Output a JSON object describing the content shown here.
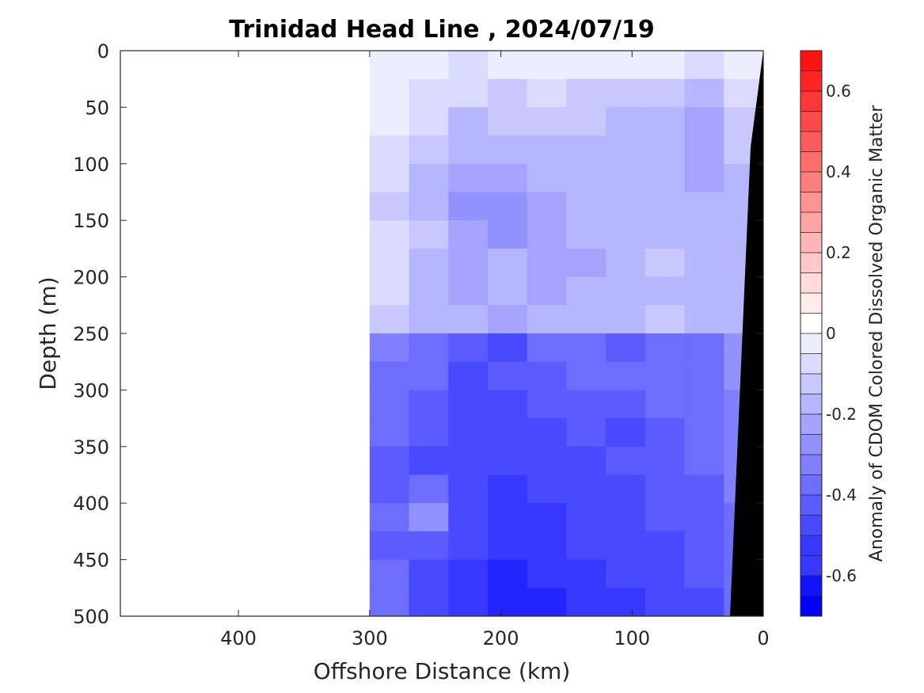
{
  "chart_data": {
    "type": "heatmap",
    "title": "Trinidad Head Line , 2024/07/19",
    "xlabel": "Offshore Distance (km)",
    "ylabel": "Depth (m)",
    "xlim": [
      490,
      0
    ],
    "ylim": [
      0,
      500
    ],
    "x_reversed": true,
    "y_reversed": true,
    "x_ticks": [
      {
        "value": 400,
        "label": "400"
      },
      {
        "value": 300,
        "label": "300"
      },
      {
        "value": 200,
        "label": "200"
      },
      {
        "value": 100,
        "label": "100"
      },
      {
        "value": 0,
        "label": "0"
      }
    ],
    "y_ticks": [
      {
        "value": 0,
        "label": "0"
      },
      {
        "value": 50,
        "label": "50"
      },
      {
        "value": 100,
        "label": "100"
      },
      {
        "value": 150,
        "label": "150"
      },
      {
        "value": 200,
        "label": "200"
      },
      {
        "value": 250,
        "label": "250"
      },
      {
        "value": 300,
        "label": "300"
      },
      {
        "value": 350,
        "label": "350"
      },
      {
        "value": 400,
        "label": "400"
      },
      {
        "value": 450,
        "label": "450"
      },
      {
        "value": 500,
        "label": "500"
      }
    ],
    "data_x_range": [
      0,
      300
    ],
    "grid": false,
    "colorbar": {
      "label": "Anomaly of CDOM Colored Dissolved Organic Matter",
      "range": [
        -0.7,
        0.7
      ],
      "step": 0.05,
      "colormap": "blue-white-red",
      "low_color": "#0000ff",
      "mid_color": "#ffffff",
      "high_color": "#ff0000",
      "ticks": [
        {
          "value": 0.6,
          "label": "0.6"
        },
        {
          "value": 0.4,
          "label": "0.4"
        },
        {
          "value": 0.2,
          "label": "0.2"
        },
        {
          "value": 0,
          "label": "0"
        },
        {
          "value": -0.2,
          "label": "-0.2"
        },
        {
          "value": -0.4,
          "label": "-0.4"
        },
        {
          "value": -0.6,
          "label": "-0.6"
        }
      ]
    },
    "depth_bins": [
      0,
      25,
      50,
      75,
      100,
      125,
      150,
      175,
      200,
      225,
      250,
      275,
      300,
      325,
      350,
      375,
      400,
      425,
      450,
      475,
      500
    ],
    "distance_bins": [
      300,
      270,
      240,
      210,
      180,
      150,
      120,
      90,
      60,
      30,
      0
    ],
    "values": [
      [
        -0.05,
        -0.06,
        -0.08,
        -0.06,
        -0.05,
        -0.06,
        -0.05,
        -0.06,
        -0.1,
        -0.04
      ],
      [
        -0.03,
        -0.1,
        -0.12,
        -0.14,
        -0.12,
        -0.13,
        -0.15,
        -0.16,
        -0.22,
        -0.1
      ],
      [
        -0.04,
        -0.12,
        -0.18,
        -0.17,
        -0.15,
        -0.16,
        -0.18,
        -0.2,
        -0.24,
        -0.14
      ],
      [
        -0.1,
        -0.15,
        -0.22,
        -0.22,
        -0.2,
        -0.2,
        -0.22,
        -0.22,
        -0.26,
        -0.16
      ],
      [
        -0.12,
        -0.18,
        -0.25,
        -0.24,
        -0.22,
        -0.21,
        -0.22,
        -0.2,
        -0.24,
        -0.18
      ],
      [
        -0.14,
        -0.2,
        -0.3,
        -0.32,
        -0.26,
        -0.22,
        -0.2,
        -0.22,
        -0.22,
        -0.2
      ],
      [
        -0.08,
        -0.16,
        -0.26,
        -0.28,
        -0.24,
        -0.2,
        -0.2,
        -0.18,
        -0.2,
        -0.18
      ],
      [
        -0.1,
        -0.2,
        -0.24,
        -0.22,
        -0.26,
        -0.24,
        -0.18,
        -0.16,
        -0.2,
        -0.18
      ],
      [
        -0.12,
        -0.22,
        -0.24,
        -0.22,
        -0.24,
        -0.22,
        -0.2,
        -0.18,
        -0.22,
        -0.2
      ],
      [
        -0.15,
        -0.2,
        -0.22,
        -0.24,
        -0.22,
        -0.2,
        -0.18,
        -0.16,
        -0.2,
        -0.18
      ],
      [
        -0.35,
        -0.4,
        -0.45,
        -0.48,
        -0.42,
        -0.4,
        -0.44,
        -0.4,
        -0.38,
        -0.3
      ],
      [
        -0.38,
        -0.42,
        -0.48,
        -0.46,
        -0.44,
        -0.42,
        -0.4,
        -0.42,
        -0.4,
        -0.32
      ],
      [
        -0.4,
        -0.44,
        -0.5,
        -0.52,
        -0.46,
        -0.44,
        -0.45,
        -0.42,
        -0.38,
        -0.34
      ],
      [
        -0.42,
        -0.46,
        -0.48,
        -0.5,
        -0.48,
        -0.46,
        -0.48,
        -0.44,
        -0.4,
        -0.34
      ],
      [
        -0.44,
        -0.48,
        -0.5,
        -0.52,
        -0.5,
        -0.48,
        -0.46,
        -0.44,
        -0.42,
        -0.36
      ],
      [
        -0.46,
        -0.4,
        -0.52,
        -0.54,
        -0.52,
        -0.5,
        -0.5,
        -0.46,
        -0.44,
        -0.36
      ],
      [
        -0.38,
        -0.3,
        -0.5,
        -0.56,
        -0.54,
        -0.5,
        -0.48,
        -0.46,
        -0.44,
        -0.38
      ],
      [
        -0.44,
        -0.46,
        -0.52,
        -0.56,
        -0.56,
        -0.52,
        -0.5,
        -0.48,
        -0.46,
        -0.4
      ],
      [
        -0.42,
        -0.48,
        -0.54,
        -0.58,
        -0.56,
        -0.54,
        -0.5,
        -0.48,
        -0.46,
        -0.4
      ],
      [
        -0.4,
        -0.5,
        -0.56,
        -0.6,
        -0.58,
        -0.56,
        -0.54,
        -0.5,
        -0.48,
        -0.42
      ]
    ]
  }
}
